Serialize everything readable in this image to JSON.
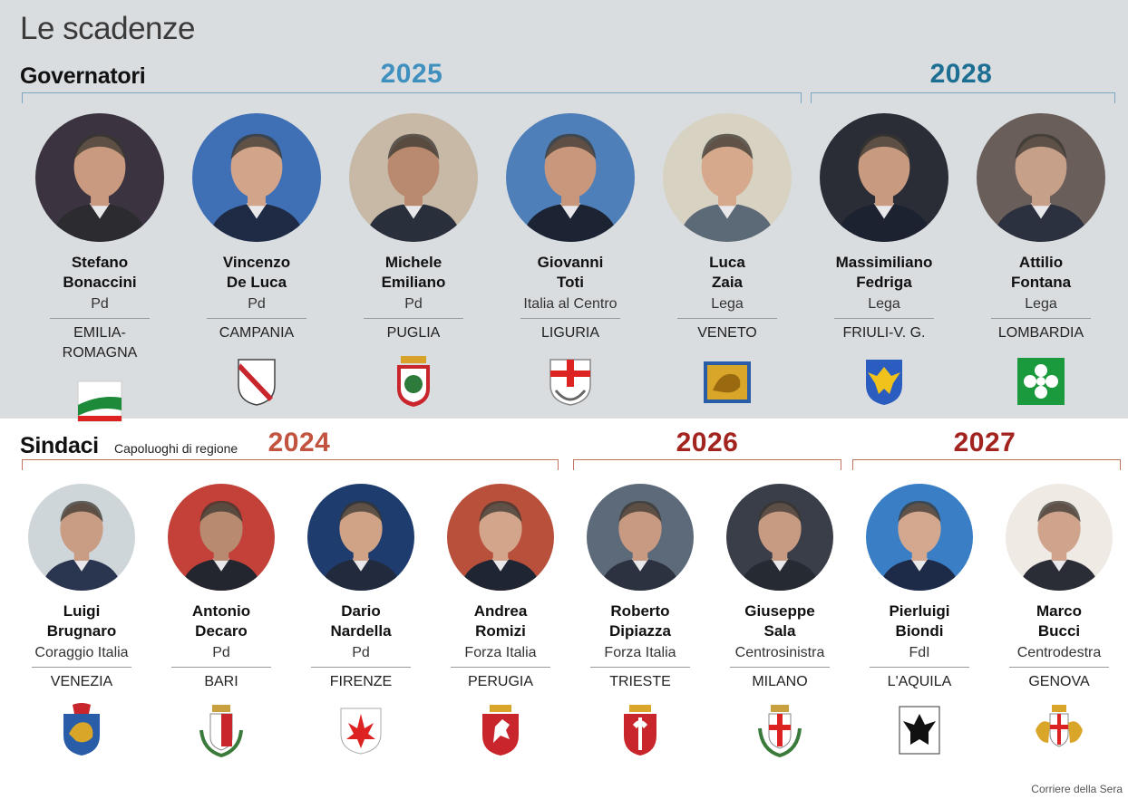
{
  "title": "Le scadenze",
  "governatori": {
    "label": "Governatori",
    "years": [
      "2025",
      "2028"
    ],
    "people": [
      {
        "first": "Stefano",
        "last": "Bonaccini",
        "party": "Pd",
        "region": "EMILIA-ROMAGNA",
        "crest_icon": "emilia-romagna-flag-icon",
        "shirt": "#2b2b30",
        "skin": "#c99a7f",
        "bg": "#3b3440"
      },
      {
        "first": "Vincenzo",
        "last": "De Luca",
        "party": "Pd",
        "region": "CAMPANIA",
        "crest_icon": "campania-shield-icon",
        "shirt": "#1f2a44",
        "skin": "#d2a48a",
        "bg": "#3f6fb5"
      },
      {
        "first": "Michele",
        "last": "Emiliano",
        "party": "Pd",
        "region": "PUGLIA",
        "crest_icon": "puglia-shield-icon",
        "shirt": "#2a2f3c",
        "skin": "#b98a6f",
        "bg": "#c7b9a6"
      },
      {
        "first": "Giovanni",
        "last": "Toti",
        "party": "Italia al Centro",
        "region": "LIGURIA",
        "crest_icon": "liguria-shield-icon",
        "shirt": "#1c2434",
        "skin": "#c9987c",
        "bg": "#4f7fb8"
      },
      {
        "first": "Luca",
        "last": "Zaia",
        "party": "Lega",
        "region": "VENETO",
        "crest_icon": "veneto-lion-flag-icon",
        "shirt": "#5c6a78",
        "skin": "#d6a98d",
        "bg": "#d8d2c2"
      },
      {
        "first": "Massimiliano",
        "last": "Fedriga",
        "party": "Lega",
        "region": "FRIULI-V. G.",
        "crest_icon": "friuli-eagle-shield-icon",
        "shirt": "#1d2230",
        "skin": "#c89a80",
        "bg": "#2a2c36"
      },
      {
        "first": "Attilio",
        "last": "Fontana",
        "party": "Lega",
        "region": "LOMBARDIA",
        "crest_icon": "lombardia-rose-flag-icon",
        "shirt": "#2c3140",
        "skin": "#c7a08a",
        "bg": "#6a5e5a"
      }
    ]
  },
  "sindaci": {
    "label": "Sindaci",
    "subtitle": "Capoluoghi di regione",
    "years": [
      "2024",
      "2026",
      "2027"
    ],
    "people": [
      {
        "first": "Luigi",
        "last": "Brugnaro",
        "party": "Coraggio Italia",
        "region": "VENEZIA",
        "crest_icon": "venezia-crest-icon",
        "shirt": "#2a3550",
        "skin": "#c99c84",
        "bg": "#cfd6da"
      },
      {
        "first": "Antonio",
        "last": "Decaro",
        "party": "Pd",
        "region": "BARI",
        "crest_icon": "bari-crest-icon",
        "shirt": "#23262e",
        "skin": "#b88a70",
        "bg": "#c4413a"
      },
      {
        "first": "Dario",
        "last": "Nardella",
        "party": "Pd",
        "region": "FIRENZE",
        "crest_icon": "firenze-lily-icon",
        "shirt": "#222b3d",
        "skin": "#d0a286",
        "bg": "#1e3d6e"
      },
      {
        "first": "Andrea",
        "last": "Romizi",
        "party": "Forza Italia",
        "region": "PERUGIA",
        "crest_icon": "perugia-griffin-icon",
        "shirt": "#1f2533",
        "skin": "#d3a58b",
        "bg": "#b8503c"
      },
      {
        "first": "Roberto",
        "last": "Dipiazza",
        "party": "Forza Italia",
        "region": "TRIESTE",
        "crest_icon": "trieste-halberd-icon",
        "shirt": "#2c3240",
        "skin": "#c99a82",
        "bg": "#5d6a7a"
      },
      {
        "first": "Giuseppe",
        "last": "Sala",
        "party": "Centrosinistra",
        "region": "MILANO",
        "crest_icon": "milano-cross-icon",
        "shirt": "#262a33",
        "skin": "#c79a82",
        "bg": "#3a3e48"
      },
      {
        "first": "Pierluigi",
        "last": "Biondi",
        "party": "FdI",
        "region": "L'AQUILA",
        "crest_icon": "laquila-eagle-icon",
        "shirt": "#1d2a48",
        "skin": "#d4a88e",
        "bg": "#3a7fc6"
      },
      {
        "first": "Marco",
        "last": "Bucci",
        "party": "Centrodestra",
        "region": "GENOVA",
        "crest_icon": "genova-griffins-icon",
        "shirt": "#2a2d35",
        "skin": "#d0a48c",
        "bg": "#efeae4"
      }
    ]
  },
  "credit": "Corriere della Sera"
}
